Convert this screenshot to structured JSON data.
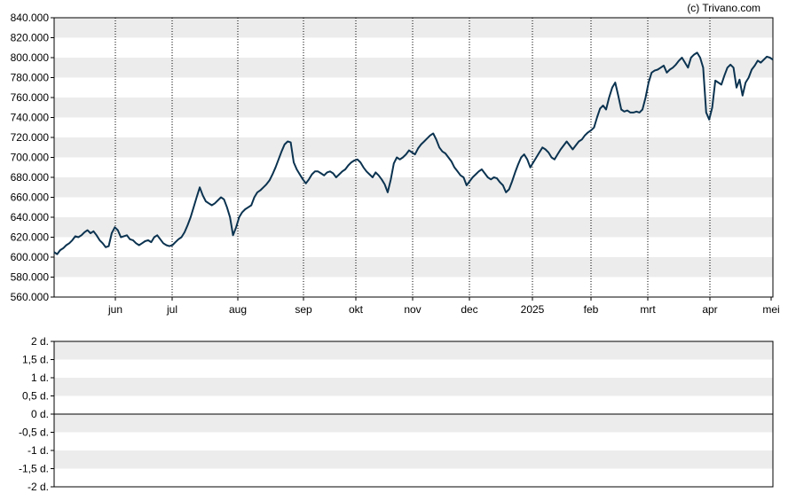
{
  "copyright": "(c) Trivano.com",
  "chart_data": [
    {
      "type": "line",
      "title": "",
      "xlabel": "",
      "ylabel": "",
      "ylim": [
        560000,
        840000
      ],
      "grid": "alternating horizontal bands, dotted vertical month lines",
      "y_ticks": [
        "560.000",
        "580.000",
        "600.000",
        "620.000",
        "640.000",
        "660.000",
        "680.000",
        "700.000",
        "720.000",
        "740.000",
        "760.000",
        "780.000",
        "800.000",
        "820.000",
        "840.000"
      ],
      "x_ticks": [
        "jun",
        "jul",
        "aug",
        "sep",
        "okt",
        "nov",
        "dec",
        "2025",
        "feb",
        "mrt",
        "apr",
        "mei"
      ],
      "line_color": "#0b3350",
      "series": [
        {
          "values": [
            605000,
            603000,
            607000,
            609000,
            612000,
            614000,
            617000,
            621000,
            620000,
            622000,
            625000,
            627000,
            624000,
            626000,
            622000,
            617000,
            614000,
            610000,
            611000,
            624000,
            630000,
            627000,
            620000,
            621000,
            622000,
            618000,
            617000,
            614000,
            612000,
            614000,
            616000,
            617000,
            615000,
            620000,
            622000,
            618000,
            614000,
            612000,
            611000,
            612000,
            615000,
            618000,
            620000,
            625000,
            632000,
            640000,
            650000,
            660000,
            670000,
            662000,
            656000,
            654000,
            652000,
            654000,
            657000,
            660000,
            658000,
            650000,
            640000,
            622000,
            630000,
            640000,
            645000,
            648000,
            650000,
            652000,
            660000,
            665000,
            667000,
            670000,
            673000,
            677000,
            683000,
            690000,
            698000,
            706000,
            713000,
            716000,
            715000,
            695000,
            688000,
            683000,
            678000,
            674000,
            678000,
            683000,
            686000,
            686000,
            684000,
            682000,
            685000,
            686000,
            684000,
            680000,
            683000,
            686000,
            688000,
            692000,
            695000,
            697000,
            698000,
            695000,
            690000,
            686000,
            683000,
            680000,
            685000,
            682000,
            678000,
            673000,
            665000,
            678000,
            694000,
            700000,
            698000,
            700000,
            703000,
            707000,
            705000,
            703000,
            709000,
            713000,
            716000,
            719000,
            722000,
            724000,
            718000,
            710000,
            706000,
            704000,
            700000,
            696000,
            690000,
            686000,
            682000,
            680000,
            672000,
            676000,
            680000,
            683000,
            686000,
            688000,
            684000,
            680000,
            678000,
            680000,
            679000,
            675000,
            672000,
            665000,
            668000,
            676000,
            685000,
            693000,
            700000,
            703000,
            698000,
            690000,
            695000,
            700000,
            705000,
            710000,
            708000,
            705000,
            700000,
            698000,
            703000,
            708000,
            712000,
            716000,
            712000,
            708000,
            712000,
            716000,
            718000,
            722000,
            725000,
            727000,
            730000,
            740000,
            749000,
            752000,
            748000,
            760000,
            770000,
            775000,
            762000,
            748000,
            746000,
            747000,
            745000,
            745000,
            746000,
            745000,
            748000,
            760000,
            775000,
            785000,
            787000,
            788000,
            790000,
            792000,
            785000,
            788000,
            790000,
            793000,
            797000,
            800000,
            795000,
            790000,
            800000,
            803000,
            805000,
            800000,
            790000,
            745000,
            738000,
            750000,
            777000,
            775000,
            773000,
            782000,
            790000,
            793000,
            790000,
            770000,
            778000,
            762000,
            775000,
            780000,
            788000,
            792000,
            797000,
            795000,
            798000,
            801000,
            800000,
            798000
          ]
        }
      ]
    },
    {
      "type": "line",
      "title": "",
      "xlabel": "",
      "ylabel": "",
      "ylim": [
        -2,
        2
      ],
      "grid": "alternating horizontal bands",
      "y_ticks": [
        "2 d.",
        "1,5 d.",
        "1 d.",
        "0,5 d.",
        "0 d.",
        "-0,5 d.",
        "-1 d.",
        "-1,5 d.",
        "-2 d."
      ],
      "series": []
    }
  ]
}
